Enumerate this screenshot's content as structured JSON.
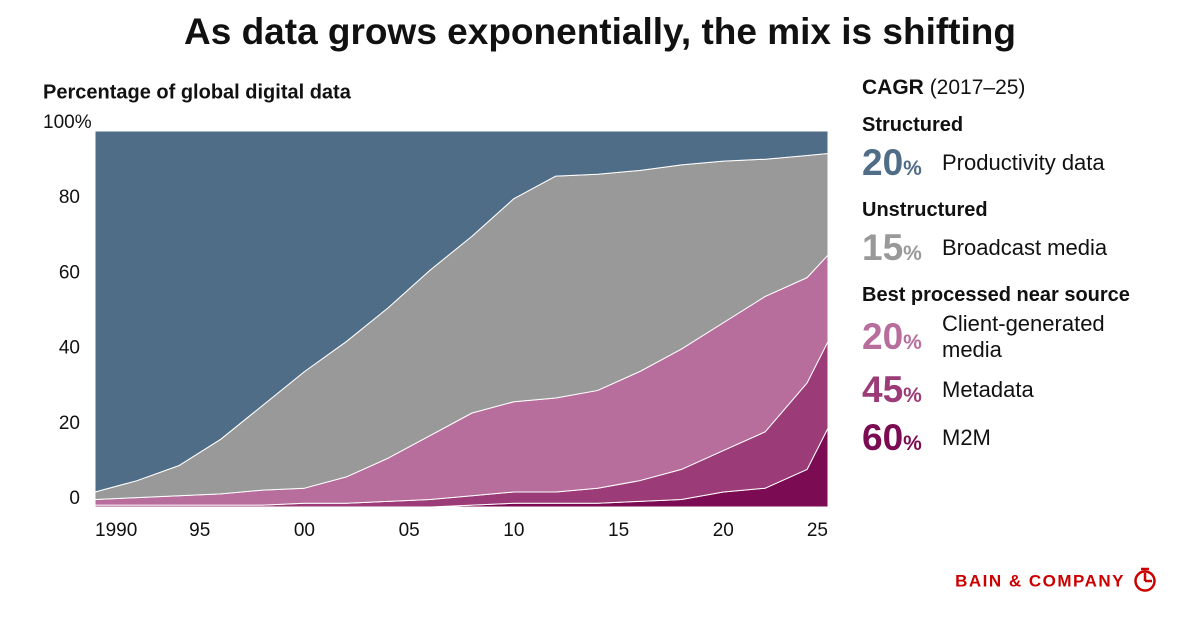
{
  "chart_data": {
    "type": "stacked_area",
    "title": "As data grows exponentially, the mix is shifting",
    "y_label": "Percentage of global digital data",
    "x": [
      1990,
      1992,
      1994,
      1996,
      1998,
      2000,
      2002,
      2004,
      2006,
      2008,
      2010,
      2012,
      2014,
      2016,
      2018,
      2020,
      2022,
      2024,
      2025
    ],
    "series": [
      {
        "name": "M2M",
        "color": "#7b0b52",
        "cagr": 60,
        "cagr_unit": "%",
        "values": [
          0,
          0,
          0,
          0,
          0,
          0,
          0,
          0,
          0,
          0.5,
          1,
          1,
          1,
          1.5,
          2,
          4,
          5,
          10,
          21
        ]
      },
      {
        "name": "Metadata",
        "color": "#9b3b78",
        "cagr": 45,
        "cagr_unit": "%",
        "values": [
          0.5,
          0.5,
          0.5,
          0.5,
          0.5,
          1,
          1,
          1.5,
          2,
          2.5,
          3,
          3,
          4,
          5.5,
          8,
          11,
          15,
          23,
          23
        ]
      },
      {
        "name": "Client-generated media",
        "color": "#b86e9c",
        "cagr": 20,
        "cagr_unit": "%",
        "values": [
          1.5,
          2,
          2.5,
          3,
          4,
          4,
          7,
          11.5,
          17,
          22,
          24,
          25,
          26,
          29,
          32,
          34,
          36,
          28,
          23
        ]
      },
      {
        "name": "Broadcast media",
        "color": "#999999",
        "cagr": 15,
        "cagr_unit": "%",
        "values": [
          2,
          4.5,
          8,
          14.5,
          22.5,
          31,
          36,
          40,
          44,
          47,
          54,
          59,
          57.5,
          53.5,
          49,
          43,
          36.5,
          32.5,
          27
        ]
      },
      {
        "name": "Productivity data",
        "color": "#506d87",
        "cagr": 20,
        "cagr_unit": "%",
        "values": [
          96,
          93,
          89,
          82,
          73,
          64,
          56,
          47,
          37,
          28,
          18,
          12,
          11.5,
          10.5,
          9,
          8,
          7.5,
          6.5,
          6
        ]
      }
    ],
    "legend_title": "CAGR",
    "legend_subtitle": "(2017–25)",
    "legend_groups": [
      "Structured",
      "Unstructured",
      "Best processed near source"
    ],
    "xlim": [
      1990,
      2025
    ],
    "xticks": [
      1990,
      {
        "value": 1995,
        "label": "95"
      },
      {
        "value": 2000,
        "label": "00"
      },
      {
        "value": 2005,
        "label": "05"
      },
      {
        "value": 2010,
        "label": "10"
      },
      {
        "value": 2015,
        "label": "15"
      },
      {
        "value": 2020,
        "label": "20"
      },
      {
        "value": 2025,
        "label": "25"
      }
    ],
    "ylim": [
      0,
      100
    ],
    "yticks": [
      0,
      20,
      40,
      60,
      80,
      {
        "value": 100,
        "label": "100%"
      }
    ],
    "grid": false,
    "logo_text": "BAIN & COMPANY"
  }
}
